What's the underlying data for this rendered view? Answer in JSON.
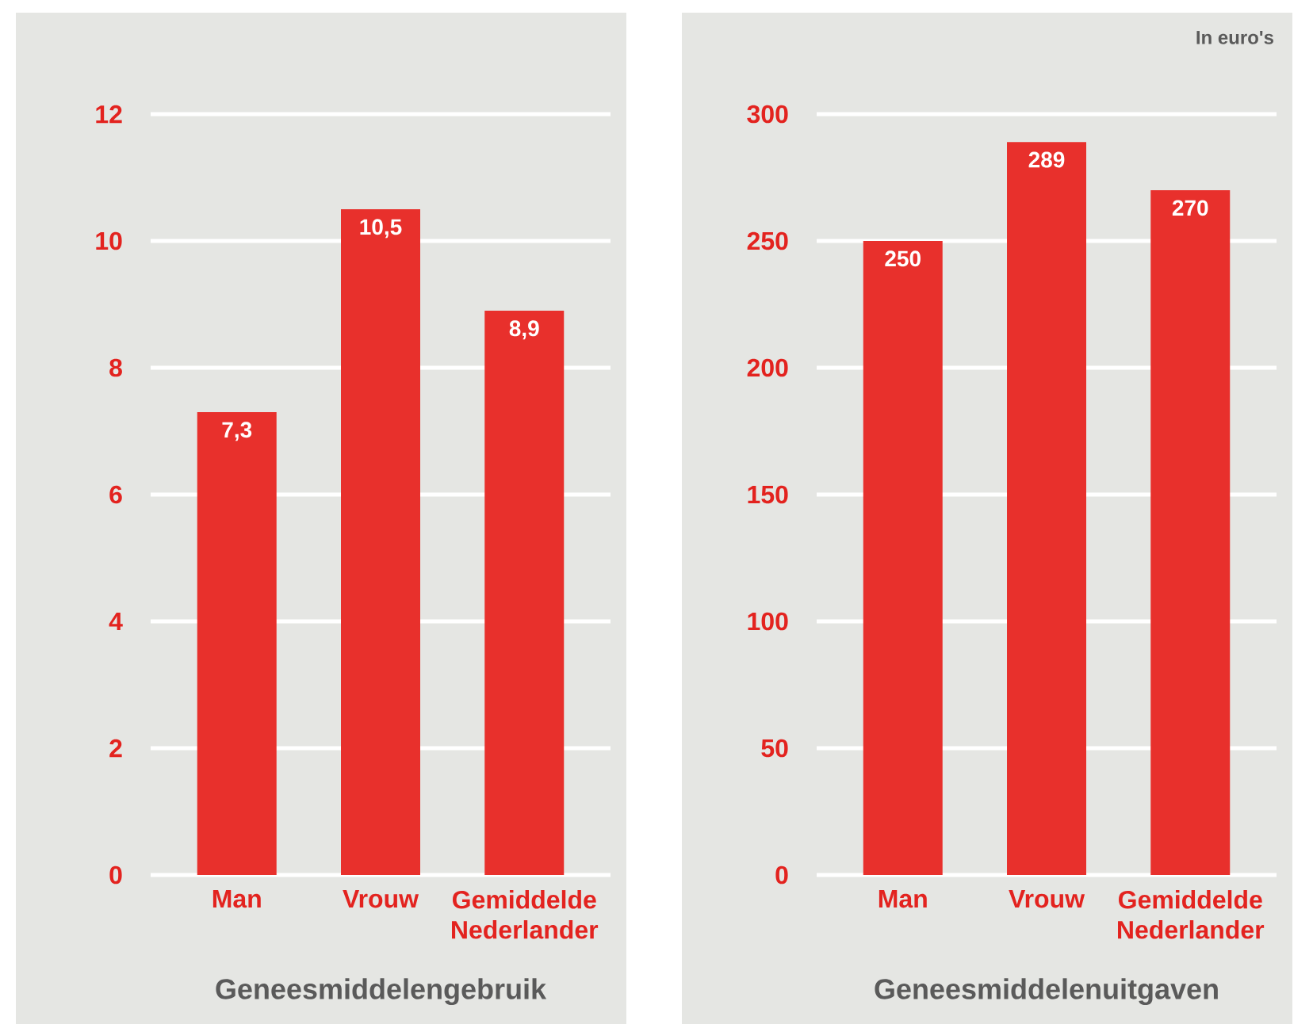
{
  "chart_data": [
    {
      "type": "bar",
      "xlabel": "Geneesmiddelengebruik",
      "categories": [
        "Man",
        "Vrouw",
        "Gemiddelde Nederlander"
      ],
      "values": [
        7.3,
        10.5,
        8.9
      ],
      "value_labels": [
        "7,3",
        "10,5",
        "8,9"
      ],
      "color": "#e8302c",
      "ylim": [
        0,
        12
      ],
      "yticks": [
        0,
        2,
        4,
        6,
        8,
        10,
        12
      ],
      "grid": "y"
    },
    {
      "type": "bar",
      "xlabel": "Geneesmiddelenuitgaven",
      "annotations": [
        "In euro's"
      ],
      "categories": [
        "Man",
        "Vrouw",
        "Gemiddelde Nederlander"
      ],
      "values": [
        250,
        289,
        270
      ],
      "value_labels": [
        "250",
        "289",
        "270"
      ],
      "color": "#e8302c",
      "ylim": [
        0,
        300
      ],
      "yticks": [
        0,
        50,
        100,
        150,
        200,
        250,
        300
      ],
      "grid": "y"
    }
  ]
}
